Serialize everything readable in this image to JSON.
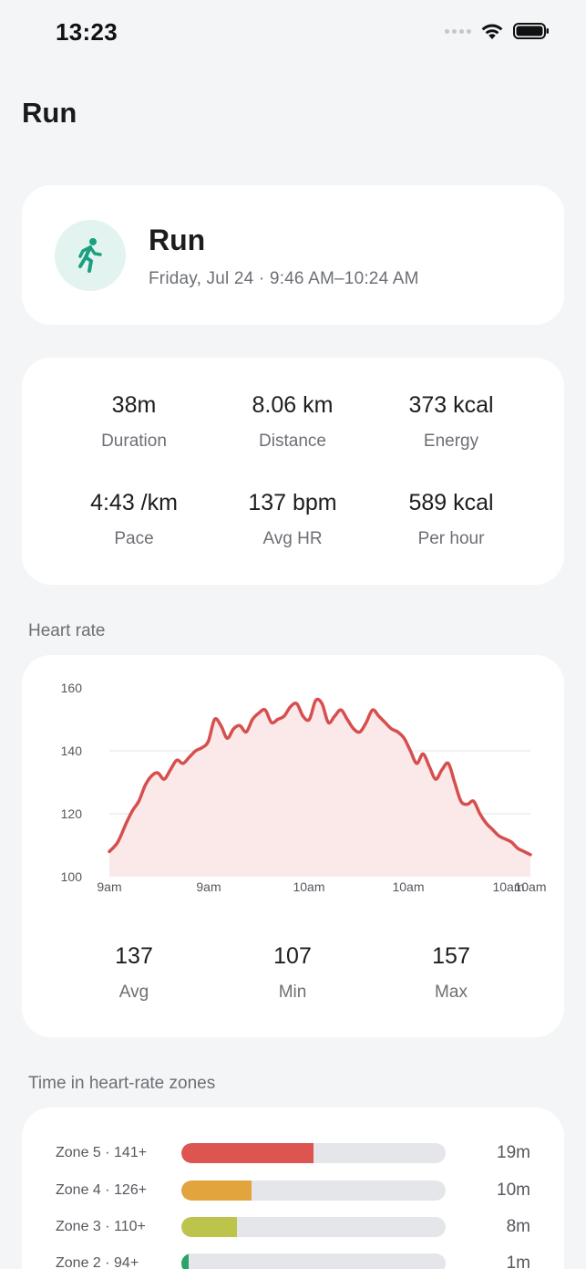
{
  "status_bar": {
    "time": "13:23"
  },
  "page": {
    "title": "Run"
  },
  "hero": {
    "icon": "running-person-icon",
    "title": "Run",
    "subtitle": "Friday, Jul 24 · 9:46 AM–10:24 AM",
    "accent": "#1aa080"
  },
  "stats": [
    {
      "value": "38m",
      "label": "Duration"
    },
    {
      "value": "8.06 km",
      "label": "Distance"
    },
    {
      "value": "373 kcal",
      "label": "Energy"
    },
    {
      "value": "4:43 /km",
      "label": "Pace"
    },
    {
      "value": "137 bpm",
      "label": "Avg HR"
    },
    {
      "value": "589 kcal",
      "label": "Per hour"
    }
  ],
  "heart_rate": {
    "section_label": "Heart rate",
    "summary": [
      {
        "value": "137",
        "label": "Avg"
      },
      {
        "value": "107",
        "label": "Min"
      },
      {
        "value": "157",
        "label": "Max"
      }
    ]
  },
  "chart_data": {
    "type": "area",
    "ylim": [
      100,
      160
    ],
    "y_ticks": [
      "160",
      "140",
      "120",
      "100"
    ],
    "x_tick_labels": [
      "9am",
      "9am",
      "10am",
      "10am",
      "10am",
      "10am"
    ],
    "line_color": "#d64f4f",
    "fill_color": "#fbe8e8",
    "grid": true,
    "x": [
      0,
      0.02,
      0.04,
      0.055,
      0.07,
      0.085,
      0.1,
      0.115,
      0.13,
      0.145,
      0.16,
      0.175,
      0.19,
      0.205,
      0.22,
      0.235,
      0.25,
      0.265,
      0.28,
      0.295,
      0.31,
      0.325,
      0.34,
      0.355,
      0.37,
      0.385,
      0.4,
      0.415,
      0.43,
      0.445,
      0.46,
      0.475,
      0.49,
      0.505,
      0.52,
      0.535,
      0.55,
      0.565,
      0.58,
      0.595,
      0.61,
      0.625,
      0.64,
      0.655,
      0.67,
      0.685,
      0.7,
      0.715,
      0.73,
      0.745,
      0.76,
      0.775,
      0.79,
      0.805,
      0.82,
      0.835,
      0.85,
      0.865,
      0.88,
      0.895,
      0.91,
      0.925,
      0.94,
      0.955,
      0.97,
      0.985,
      1.0
    ],
    "values": [
      108,
      111,
      117,
      121,
      124,
      129,
      132,
      133,
      131,
      134,
      137,
      136,
      138,
      140,
      141,
      143,
      150,
      148,
      144,
      147,
      148,
      146,
      150,
      152,
      153,
      149,
      150,
      151,
      154,
      155,
      151,
      150,
      156,
      155,
      149,
      151,
      153,
      150,
      147,
      146,
      149,
      153,
      151,
      149,
      147,
      146,
      144,
      140,
      136,
      139,
      135,
      131,
      134,
      136,
      130,
      124,
      123,
      124,
      120,
      117,
      115,
      113,
      112,
      111,
      109,
      108,
      107
    ]
  },
  "zones": {
    "section_label": "Time in heart-rate zones",
    "items": [
      {
        "label": "Zone 5 · 141+",
        "time": "19m",
        "fraction": 0.5,
        "color": "#dc5550"
      },
      {
        "label": "Zone 4 · 126+",
        "time": "10m",
        "fraction": 0.265,
        "color": "#e2a43c"
      },
      {
        "label": "Zone 3 · 110+",
        "time": "8m",
        "fraction": 0.21,
        "color": "#bcc44c"
      },
      {
        "label": "Zone 2 · 94+",
        "time": "1m",
        "fraction": 0.028,
        "color": "#2aa368"
      }
    ]
  }
}
